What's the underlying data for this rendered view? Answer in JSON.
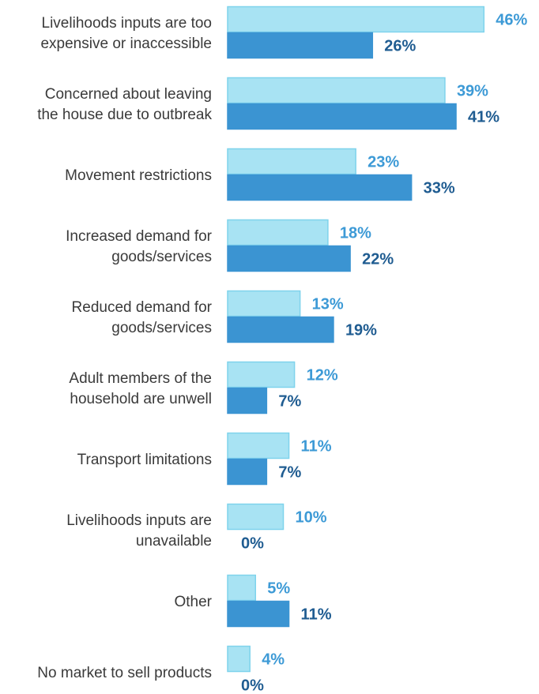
{
  "chart_data": {
    "type": "bar",
    "orientation": "horizontal",
    "title": "",
    "xlabel": "",
    "ylabel": "",
    "xlim": [
      0,
      46
    ],
    "grid": false,
    "legend": "none",
    "categories": [
      [
        "Livelihoods inputs are too",
        "expensive or inaccessible"
      ],
      [
        "Concerned about leaving",
        "the house due to outbreak"
      ],
      [
        "Movement restrictions"
      ],
      [
        "Increased demand for",
        "goods/services"
      ],
      [
        "Reduced demand for",
        "goods/services"
      ],
      [
        "Adult members of the",
        "household are unwell"
      ],
      [
        "Transport limitations"
      ],
      [
        "Livelihoods inputs are",
        "unavailable"
      ],
      [
        "Other"
      ],
      [
        "No market to sell products"
      ]
    ],
    "series": [
      {
        "values": [
          46,
          39,
          23,
          18,
          13,
          12,
          11,
          10,
          5,
          4
        ],
        "labels": [
          "46%",
          "39%",
          "23%",
          "18%",
          "13%",
          "12%",
          "11%",
          "10%",
          "5%",
          "4%"
        ],
        "color": "#a8e3f3",
        "border": "#7fd3ec",
        "label_color": "#3d9ad6"
      },
      {
        "values": [
          26,
          41,
          33,
          22,
          19,
          7,
          7,
          0,
          11,
          0
        ],
        "labels": [
          "26%",
          "41%",
          "33%",
          "22%",
          "19%",
          "7%",
          "7%",
          "0%",
          "11%",
          "0%"
        ],
        "color": "#3b94d2",
        "border": "#3b94d2",
        "label_color": "#1f5c91"
      }
    ]
  }
}
